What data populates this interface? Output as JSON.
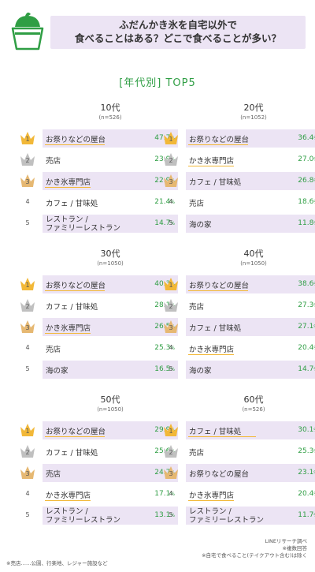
{
  "header": {
    "icon": "shaved-ice-cup-icon",
    "title_line1": "ふだんかき氷を自宅以外で",
    "title_line2": "食べることはある？どこで食べることが多い？"
  },
  "section_title": "[年代別] TOP5",
  "colors": {
    "green": "#2f9e44",
    "lavender": "#ece4f4",
    "gold": "#f2b838",
    "silver": "#c0c0c0",
    "bronze": "#e6b872"
  },
  "chart_data": [
    {
      "type": "table",
      "group": "10代",
      "n": "(n=526)",
      "ranks": [
        "1",
        "2",
        "3",
        "4",
        "5"
      ],
      "categories": [
        "お祭りなどの屋台",
        "売店",
        "かき氷専門店",
        "カフェ / 甘味処",
        "レストラン / ファミリーレストラン"
      ],
      "values": [
        47.7,
        23.9,
        22.9,
        21.4,
        14.7
      ],
      "unit": "%"
    },
    {
      "type": "table",
      "group": "20代",
      "n": "(n=1052)",
      "ranks": [
        "1",
        "2",
        "3",
        "4",
        "5"
      ],
      "categories": [
        "お祭りなどの屋台",
        "かき氷専門店",
        "カフェ / 甘味処",
        "売店",
        "海の家"
      ],
      "values": [
        36.4,
        27.0,
        26.8,
        18.6,
        11.8
      ],
      "unit": "%"
    },
    {
      "type": "table",
      "group": "30代",
      "n": "(n=1050)",
      "ranks": [
        "1",
        "2",
        "3",
        "4",
        "5"
      ],
      "categories": [
        "お祭りなどの屋台",
        "カフェ / 甘味処",
        "かき氷専門店",
        "売店",
        "海の家"
      ],
      "values": [
        40.3,
        28.1,
        26.5,
        25.3,
        16.5
      ],
      "unit": "%"
    },
    {
      "type": "table",
      "group": "40代",
      "n": "(n=1050)",
      "ranks": [
        "1",
        "2",
        "3",
        "4",
        "5"
      ],
      "categories": [
        "お祭りなどの屋台",
        "売店",
        "カフェ / 甘味処",
        "かき氷専門店",
        "海の家"
      ],
      "values": [
        38.6,
        27.3,
        27.1,
        20.4,
        14.7
      ],
      "unit": "%"
    },
    {
      "type": "table",
      "group": "50代",
      "n": "(n=1050)",
      "ranks": [
        "1",
        "2",
        "3",
        "4",
        "5"
      ],
      "categories": [
        "お祭りなどの屋台",
        "カフェ / 甘味処",
        "売店",
        "かき氷専門店",
        "レストラン / ファミリーレストラン"
      ],
      "values": [
        29.9,
        25.6,
        24.7,
        17.1,
        13.1
      ],
      "unit": "%"
    },
    {
      "type": "table",
      "group": "60代",
      "n": "(n=526)",
      "ranks": [
        "1",
        "2",
        "3",
        "4",
        "5"
      ],
      "categories": [
        "カフェ / 甘味処",
        "売店",
        "お祭りなどの屋台",
        "かき氷専門店",
        "レストラン / ファミリーレストラン"
      ],
      "values": [
        30.1,
        25.3,
        23.1,
        20.4,
        11.7
      ],
      "unit": "%"
    }
  ],
  "footer": {
    "source": "LINEリサーチ調べ",
    "multi": "※複数回答",
    "excl": "※自宅で食べること(テイクアウト含む)は除く",
    "note": "※売店……公園、行楽地、レジャー施設など"
  }
}
